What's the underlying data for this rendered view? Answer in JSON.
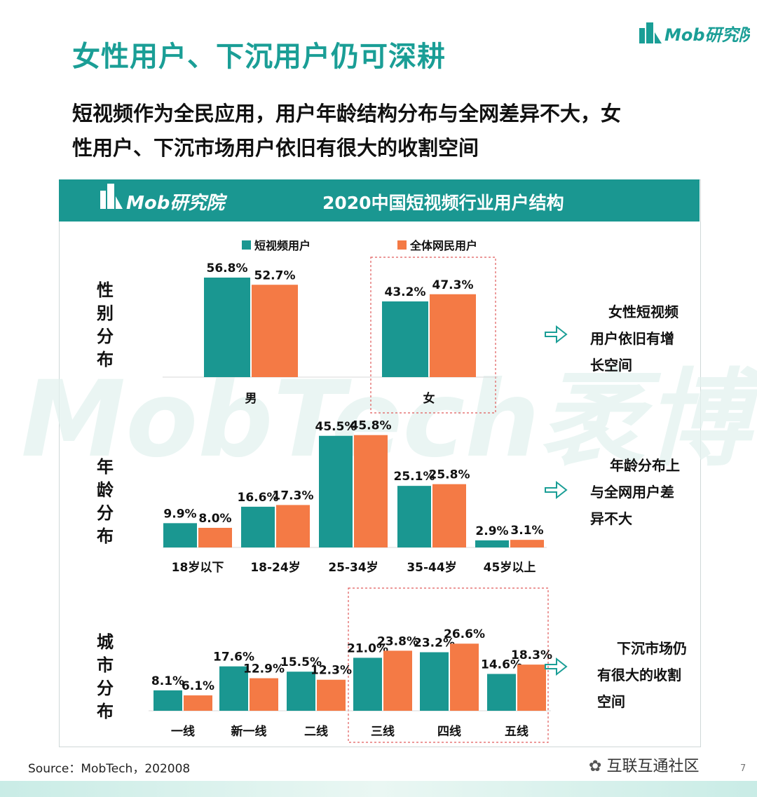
{
  "header": {
    "title": "女性用户、下沉用户仍可深耕",
    "brand": "Mob研究院",
    "subtitle_line1": "短视频作为全民应用，用户年龄结构分布与全网差异不大，女",
    "subtitle_line2": "性用户、下沉市场用户依旧有很大的收割空间"
  },
  "panel": {
    "brand": "Mob研究院",
    "title": "2020中国短视频行业用户结构",
    "watermark": "MobTech袤博"
  },
  "colors": {
    "teal": "#1a9791",
    "orange": "#f47a45",
    "title_teal": "#1a9e96",
    "highlight_border": "#e05a5a"
  },
  "chart_data": [
    {
      "type": "bar",
      "row_label": "性别分布",
      "legend": [
        "短视频用户",
        "全体网民用户"
      ],
      "categories": [
        "男",
        "女"
      ],
      "series": [
        {
          "name": "短视频用户",
          "values": [
            56.8,
            43.2
          ]
        },
        {
          "name": "全体网民用户",
          "values": [
            52.7,
            47.3
          ]
        }
      ],
      "highlight": [
        "女"
      ],
      "note": "女性短视频用户依旧有增长空间"
    },
    {
      "type": "bar",
      "row_label": "年龄分布",
      "categories": [
        "18岁以下",
        "18-24岁",
        "25-34岁",
        "35-44岁",
        "45岁以上"
      ],
      "series": [
        {
          "name": "短视频用户",
          "values": [
            9.9,
            16.6,
            45.5,
            25.1,
            2.9
          ]
        },
        {
          "name": "全体网民用户",
          "values": [
            8.0,
            17.3,
            45.8,
            25.8,
            3.1
          ]
        }
      ],
      "note": "年龄分布上与全网用户差异不大"
    },
    {
      "type": "bar",
      "row_label": "城市分布",
      "categories": [
        "一线",
        "新一线",
        "二线",
        "三线",
        "四线",
        "五线"
      ],
      "series": [
        {
          "name": "短视频用户",
          "values": [
            8.1,
            17.6,
            15.5,
            21.0,
            23.2,
            14.6
          ]
        },
        {
          "name": "全体网民用户",
          "values": [
            6.1,
            12.9,
            12.3,
            23.8,
            26.6,
            18.3
          ]
        }
      ],
      "highlight": [
        "三线",
        "四线",
        "五线"
      ],
      "note": "下沉市场仍有很大的收割空间"
    }
  ],
  "footer": {
    "source": "Source：MobTech，202008",
    "brand": "互联互通社区",
    "page": "7"
  }
}
